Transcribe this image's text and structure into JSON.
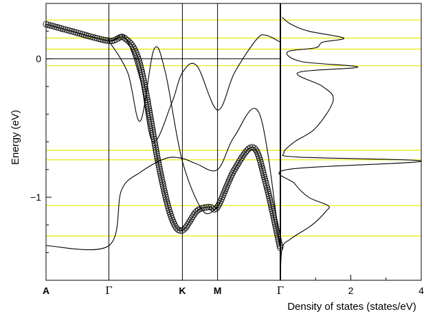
{
  "chart_data": [
    {
      "type": "line",
      "panel": "band-structure",
      "ylabel": "Energy (eV)",
      "ylim": [
        -1.6,
        0.4
      ],
      "yticks": [
        {
          "value": 0,
          "label": "0"
        },
        {
          "value": -1,
          "label": "−1"
        }
      ],
      "kpoints": [
        {
          "label": "A",
          "x": 0
        },
        {
          "label": "Γ",
          "x": 1
        },
        {
          "label": "K",
          "x": 2.17
        },
        {
          "label": "M",
          "x": 2.73
        },
        {
          "label": "Γ",
          "x": 3.73
        }
      ],
      "fermi_level": 0,
      "series": [
        {
          "style": "open-circles",
          "x": [
            0,
            0.4,
            1,
            1.25,
            1.5,
            1.8,
            2.0,
            2.17,
            2.4,
            2.6,
            2.73,
            3.0,
            3.3,
            3.5,
            3.73
          ],
          "y": [
            0.25,
            0.2,
            0.13,
            0.15,
            -0.05,
            -0.78,
            -1.15,
            -1.24,
            -1.1,
            -1.07,
            -1.07,
            -0.8,
            -0.64,
            -0.9,
            -1.37
          ]
        },
        {
          "style": "line",
          "x": [
            0,
            1,
            1.2,
            1.5,
            1.9,
            2.17,
            2.4,
            2.73,
            3.0,
            3.4,
            3.73
          ],
          "y": [
            -1.35,
            -1.35,
            -0.95,
            -0.82,
            -0.72,
            -0.72,
            -0.76,
            -0.8,
            -0.56,
            -0.4,
            -1.37
          ]
        },
        {
          "style": "line",
          "x": [
            0,
            0.4,
            1,
            1.25,
            1.5,
            1.7,
            2.0,
            2.17,
            2.4,
            2.73,
            3.0,
            3.35,
            3.5,
            3.73
          ],
          "y": [
            0.25,
            0.2,
            0.13,
            0.16,
            -0.15,
            -0.6,
            -0.32,
            -0.1,
            -0.05,
            -0.37,
            -0.1,
            0.14,
            0.17,
            0.12
          ]
        },
        {
          "style": "line",
          "x": [
            1,
            1.3,
            1.5,
            1.72,
            1.9,
            2.17,
            2.5,
            2.73
          ],
          "y": [
            0.13,
            -0.1,
            -0.45,
            0.07,
            -0.1,
            -0.74,
            -1.1,
            -1.07
          ]
        }
      ]
    },
    {
      "type": "line",
      "panel": "density-of-states",
      "xlabel": "Density of states (states/eV)",
      "xlim": [
        0,
        4
      ],
      "xticks": [
        {
          "value": 2,
          "label": "2"
        },
        {
          "value": 4,
          "label": "4"
        }
      ],
      "series": [
        {
          "style": "line",
          "e": [
            -1.6,
            -1.37,
            -1.3,
            -1.2,
            -1.1,
            -1.06,
            -1.0,
            -0.9,
            -0.8,
            -0.74,
            -0.71,
            -0.68,
            -0.6,
            -0.5,
            -0.3,
            -0.2,
            -0.1,
            -0.06,
            -0.02,
            0.05,
            0.08,
            0.12,
            0.15,
            0.2,
            0.25,
            0.3
          ],
          "dos": [
            0,
            0.05,
            0.3,
            0.9,
            1.3,
            1.35,
            0.8,
            0.4,
            0.2,
            4.0,
            0.5,
            0.1,
            0.4,
            1.0,
            1.5,
            1.2,
            0.5,
            2.2,
            0.6,
            0.2,
            1.0,
            1.2,
            1.8,
            0.8,
            0.3,
            0.05
          ]
        }
      ]
    },
    {
      "type": "line",
      "panel": "reference-lines",
      "colors": {
        "band_markers": "#e8e800",
        "axes": "#000000"
      },
      "energies": [
        0.28,
        0.15,
        0.07,
        -0.05,
        -0.66,
        -0.73,
        -1.06,
        -1.28
      ]
    }
  ]
}
